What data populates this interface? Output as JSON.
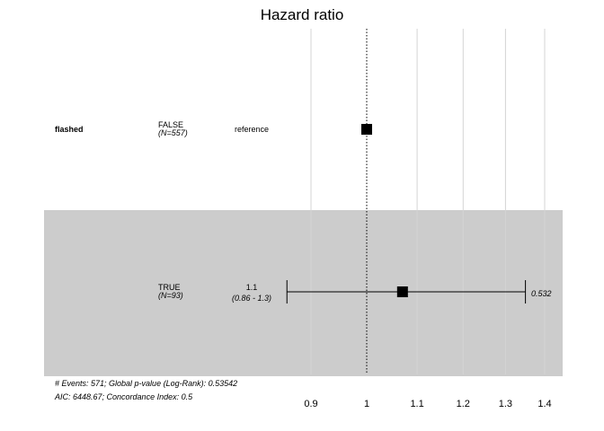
{
  "chart_data": {
    "type": "forest",
    "title": "Hazard ratio",
    "x_scale": "log",
    "xlim": [
      0.86,
      1.42
    ],
    "reference_line": 1,
    "grid": true,
    "xticks": [
      0.9,
      1,
      1.1,
      1.2,
      1.3,
      1.4
    ],
    "xtick_labels": [
      "0.9",
      "1",
      "1.1",
      "1.2",
      "1.3",
      "1.4"
    ],
    "rows": [
      {
        "variable": "flashed",
        "level": "FALSE",
        "n_label": "(N=557)",
        "estimate_label": "reference",
        "ci_label": "",
        "hr": 1.0,
        "ci_low": null,
        "ci_high": null,
        "p_label": "",
        "shaded": false
      },
      {
        "variable": "",
        "level": "TRUE",
        "n_label": "(N=93)",
        "estimate_label": "1.1",
        "ci_label": "(0.86 - 1.3)",
        "hr": 1.07,
        "ci_low": 0.86,
        "ci_high": 1.35,
        "p_label": "0.532",
        "shaded": true
      }
    ],
    "footnote": [
      "# Events: 571; Global p-value (Log-Rank): 0.53542",
      "AIC: 6448.67; Concordance Index: 0.5"
    ]
  }
}
